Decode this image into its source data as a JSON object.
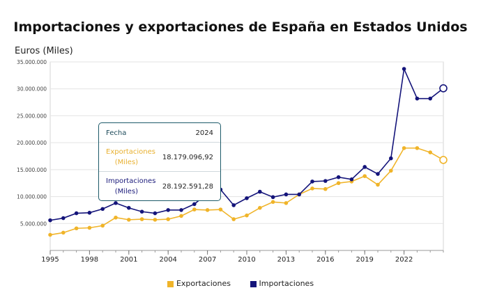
{
  "chart_data": {
    "type": "line",
    "title": "Importaciones y exportaciones de España en Estados Unidos",
    "ylabel": "Euros (Miles)",
    "xlabel": "",
    "x": [
      1995,
      1996,
      1997,
      1998,
      1999,
      2000,
      2001,
      2002,
      2003,
      2004,
      2005,
      2006,
      2007,
      2008,
      2009,
      2010,
      2011,
      2012,
      2013,
      2014,
      2015,
      2016,
      2017,
      2018,
      2019,
      2020,
      2021,
      2022,
      2023,
      2024,
      2025
    ],
    "series": [
      {
        "name": "Exportaciones",
        "color": "#f0b429",
        "values": [
          2900000,
          3300000,
          4100000,
          4200000,
          4600000,
          6100000,
          5700000,
          5800000,
          5700000,
          5800000,
          6400000,
          7600000,
          7500000,
          7600000,
          5800000,
          6500000,
          7900000,
          9000000,
          8800000,
          10400000,
          11500000,
          11400000,
          12500000,
          12800000,
          13800000,
          12200000,
          14800000,
          19000000,
          19000000,
          18200000,
          16800000
        ]
      },
      {
        "name": "Importaciones",
        "color": "#14147a",
        "values": [
          5600000,
          6000000,
          6900000,
          7000000,
          7700000,
          8800000,
          7900000,
          7200000,
          6900000,
          7500000,
          7500000,
          8600000,
          10600000,
          11300000,
          8400000,
          9700000,
          10900000,
          9900000,
          10400000,
          10400000,
          12800000,
          12900000,
          13600000,
          13200000,
          15500000,
          14200000,
          17100000,
          33700000,
          28200000,
          28200000,
          30100000
        ]
      }
    ],
    "ylim": [
      0,
      35000000
    ],
    "y_ticks": [
      "5.000.000",
      "10.000.000",
      "15.000.000",
      "20.000.000",
      "25.000.000",
      "30.000.000",
      "35.000.000"
    ],
    "y_tick_values": [
      5000000,
      10000000,
      15000000,
      20000000,
      25000000,
      30000000,
      35000000
    ],
    "x_ticks": [
      "1995",
      "1998",
      "2001",
      "2004",
      "2007",
      "2010",
      "2013",
      "2016",
      "2019",
      "2022"
    ],
    "x_tick_values": [
      1995,
      1998,
      2001,
      2004,
      2007,
      2010,
      2013,
      2016,
      2019,
      2022
    ],
    "tooltip": {
      "fecha_label": "Fecha",
      "fecha_value": "2024",
      "exp_label_line1": "Exportaciones",
      "exp_label_line2": "(Miles)",
      "exp_value": "18.179.096,92",
      "imp_label_line1": "Importaciones",
      "imp_label_line2": "(Miles)",
      "imp_value": "28.192.591,28"
    },
    "legend": [
      "Exportaciones",
      "Importaciones"
    ],
    "legend_position": "bottom"
  }
}
